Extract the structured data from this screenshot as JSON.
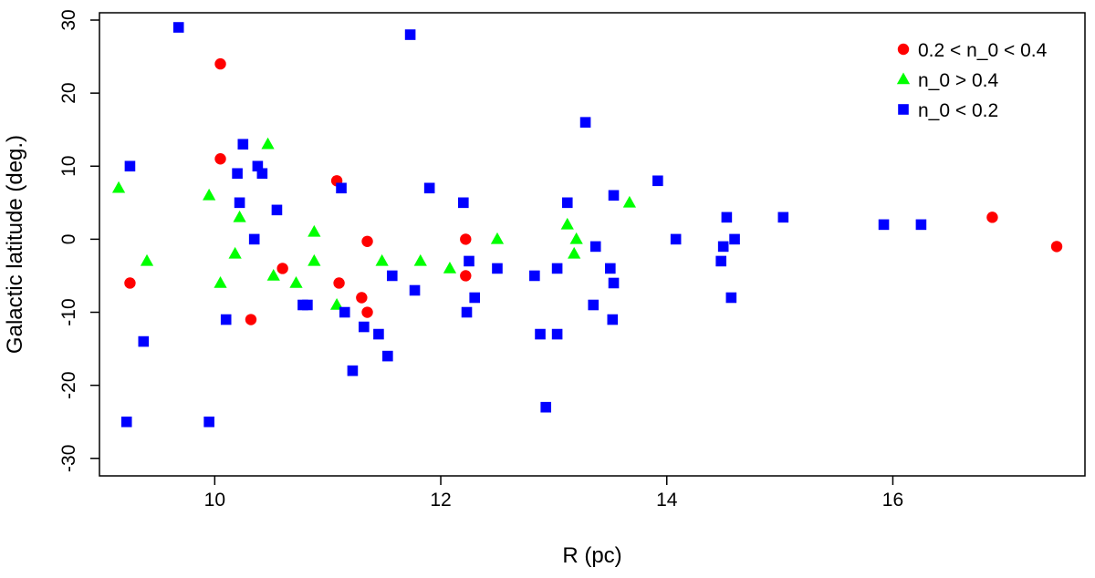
{
  "chart_data": {
    "type": "scatter",
    "xlabel": "R (pc)",
    "ylabel": "Galactic latitude (deg.)",
    "xlim": [
      8.98,
      17.7
    ],
    "ylim": [
      -32.4,
      31.0
    ],
    "xticks": [
      10,
      12,
      14,
      16
    ],
    "yticks": [
      -30,
      -20,
      -10,
      0,
      10,
      20,
      30
    ],
    "legend_position": "top-right",
    "series": [
      {
        "name": "0.2 < n_0 < 0.4",
        "marker": "circle",
        "color": "#ff0000",
        "points": [
          [
            9.25,
            -6
          ],
          [
            10.05,
            24
          ],
          [
            10.05,
            11
          ],
          [
            10.32,
            -11
          ],
          [
            10.6,
            -4
          ],
          [
            11.08,
            8
          ],
          [
            11.1,
            -6
          ],
          [
            11.3,
            -8
          ],
          [
            11.35,
            -0.3
          ],
          [
            11.35,
            -10
          ],
          [
            12.22,
            0
          ],
          [
            12.22,
            -5
          ],
          [
            16.88,
            3
          ],
          [
            17.45,
            -1
          ]
        ]
      },
      {
        "name": "n_0 > 0.4",
        "marker": "triangle",
        "color": "#00ff00",
        "points": [
          [
            9.15,
            7
          ],
          [
            9.4,
            -3
          ],
          [
            9.95,
            6
          ],
          [
            10.05,
            -6
          ],
          [
            10.18,
            -2
          ],
          [
            10.22,
            3
          ],
          [
            10.47,
            13
          ],
          [
            10.52,
            -5
          ],
          [
            10.72,
            -6
          ],
          [
            10.88,
            1
          ],
          [
            10.88,
            -3
          ],
          [
            11.08,
            -9
          ],
          [
            11.48,
            -3
          ],
          [
            11.82,
            -3
          ],
          [
            12.08,
            -4
          ],
          [
            12.5,
            0
          ],
          [
            13.12,
            2
          ],
          [
            13.18,
            -2
          ],
          [
            13.2,
            0
          ],
          [
            13.67,
            5
          ]
        ]
      },
      {
        "name": "n_0 < 0.2",
        "marker": "square",
        "color": "#0000ff",
        "points": [
          [
            9.25,
            10
          ],
          [
            9.22,
            -25
          ],
          [
            9.37,
            -14
          ],
          [
            9.68,
            29
          ],
          [
            9.95,
            -25
          ],
          [
            10.1,
            -11
          ],
          [
            10.2,
            9
          ],
          [
            10.22,
            5
          ],
          [
            10.25,
            13
          ],
          [
            10.35,
            0
          ],
          [
            10.38,
            10
          ],
          [
            10.42,
            9
          ],
          [
            10.55,
            4
          ],
          [
            10.78,
            -9
          ],
          [
            10.82,
            -9
          ],
          [
            11.12,
            7
          ],
          [
            11.15,
            -10
          ],
          [
            11.22,
            -18
          ],
          [
            11.32,
            -12
          ],
          [
            11.45,
            -13
          ],
          [
            11.53,
            -16
          ],
          [
            11.57,
            -5
          ],
          [
            11.73,
            28
          ],
          [
            11.77,
            -7
          ],
          [
            11.9,
            7
          ],
          [
            12.2,
            5
          ],
          [
            12.23,
            -10
          ],
          [
            12.25,
            -3
          ],
          [
            12.3,
            -8
          ],
          [
            12.5,
            -4
          ],
          [
            12.83,
            -5
          ],
          [
            12.88,
            -13
          ],
          [
            12.93,
            -23
          ],
          [
            13.03,
            -4
          ],
          [
            13.03,
            -13
          ],
          [
            13.12,
            5
          ],
          [
            13.28,
            16
          ],
          [
            13.35,
            -9
          ],
          [
            13.37,
            -1
          ],
          [
            13.5,
            -4
          ],
          [
            13.52,
            -11
          ],
          [
            13.53,
            6
          ],
          [
            13.53,
            -6
          ],
          [
            13.92,
            8
          ],
          [
            14.08,
            0
          ],
          [
            14.48,
            -3
          ],
          [
            14.5,
            -1
          ],
          [
            14.53,
            3
          ],
          [
            14.57,
            -8
          ],
          [
            14.6,
            0
          ],
          [
            15.03,
            3
          ],
          [
            15.92,
            2
          ],
          [
            16.25,
            2
          ]
        ]
      }
    ]
  }
}
